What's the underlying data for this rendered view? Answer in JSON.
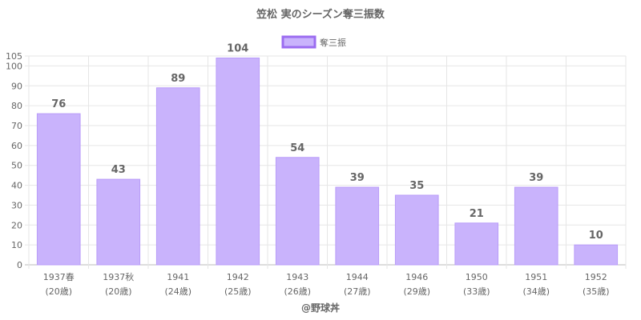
{
  "chart_data": {
    "type": "bar",
    "title": "笠松 実のシーズン奪三振数",
    "categories": [
      "1937春",
      "1937秋",
      "1941",
      "1942",
      "1943",
      "1944",
      "1946",
      "1950",
      "1951",
      "1952"
    ],
    "category_sublabels": [
      "(20歳)",
      "(20歳)",
      "(24歳)",
      "(25歳)",
      "(26歳)",
      "(27歳)",
      "(29歳)",
      "(33歳)",
      "(34歳)",
      "(35歳)"
    ],
    "series": [
      {
        "name": "奪三振",
        "values": [
          76,
          43,
          89,
          104,
          54,
          39,
          35,
          21,
          39,
          10
        ]
      }
    ],
    "yticks": [
      0,
      10,
      20,
      30,
      40,
      50,
      60,
      70,
      80,
      90,
      100,
      105
    ],
    "ylim": [
      0,
      105
    ],
    "grid": true,
    "legend": "top-center",
    "bar_color": "#c9b3fc",
    "bar_border_color": "#b99cf9",
    "legend_border_color": "#9b6cf0"
  },
  "credit": "@野球丼"
}
